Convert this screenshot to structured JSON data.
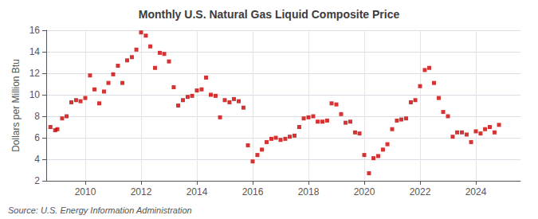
{
  "chart_data": {
    "type": "scatter",
    "title": "Monthly U.S. Natural Gas Liquid Composite Price",
    "ylabel": "Dollars per Million Btu",
    "annotations": [
      "Source: U.S. Energy Information Administration"
    ],
    "color": "#cc0000",
    "marker": "square",
    "grid": true,
    "xlim": [
      2008.6,
      2025.6
    ],
    "xticks": [
      2010,
      2012,
      2014,
      2016,
      2018,
      2020,
      2022,
      2024
    ],
    "ylim": [
      2,
      16
    ],
    "yticks": [
      2,
      4,
      6,
      8,
      10,
      12,
      14,
      16
    ],
    "x": [
      2008.75,
      2008.92,
      2009.0,
      2009.17,
      2009.33,
      2009.5,
      2009.67,
      2009.83,
      2010.0,
      2010.17,
      2010.33,
      2010.5,
      2010.67,
      2010.83,
      2011.0,
      2011.17,
      2011.33,
      2011.5,
      2011.67,
      2011.83,
      2012.0,
      2012.17,
      2012.33,
      2012.5,
      2012.67,
      2012.83,
      2013.0,
      2013.17,
      2013.33,
      2013.5,
      2013.67,
      2013.83,
      2014.0,
      2014.17,
      2014.33,
      2014.5,
      2014.67,
      2014.83,
      2015.0,
      2015.17,
      2015.33,
      2015.5,
      2015.67,
      2015.83,
      2016.0,
      2016.17,
      2016.33,
      2016.5,
      2016.67,
      2016.83,
      2017.0,
      2017.17,
      2017.33,
      2017.5,
      2017.67,
      2017.83,
      2018.0,
      2018.17,
      2018.33,
      2018.5,
      2018.67,
      2018.83,
      2019.0,
      2019.17,
      2019.33,
      2019.5,
      2019.67,
      2019.83,
      2020.0,
      2020.17,
      2020.33,
      2020.5,
      2020.67,
      2020.83,
      2021.0,
      2021.17,
      2021.33,
      2021.5,
      2021.67,
      2021.83,
      2022.0,
      2022.17,
      2022.33,
      2022.5,
      2022.67,
      2022.83,
      2023.0,
      2023.17,
      2023.33,
      2023.5,
      2023.67,
      2023.83,
      2024.0,
      2024.17,
      2024.33,
      2024.5,
      2024.67,
      2024.83
    ],
    "values": [
      7.0,
      6.7,
      6.8,
      7.8,
      8.0,
      9.3,
      9.5,
      9.4,
      9.7,
      11.8,
      10.5,
      9.2,
      10.3,
      11.1,
      11.9,
      12.7,
      11.1,
      13.2,
      13.5,
      14.2,
      15.8,
      15.5,
      14.5,
      12.5,
      13.9,
      13.8,
      13.1,
      10.7,
      9.0,
      9.5,
      9.8,
      9.9,
      10.4,
      10.5,
      11.6,
      10.0,
      9.9,
      7.9,
      9.5,
      9.3,
      9.6,
      9.4,
      8.8,
      5.3,
      3.8,
      4.4,
      4.9,
      5.6,
      5.9,
      6.0,
      5.8,
      5.9,
      6.1,
      6.2,
      7.0,
      7.8,
      7.9,
      8.0,
      7.5,
      7.5,
      7.6,
      9.2,
      9.1,
      8.2,
      7.4,
      7.5,
      6.5,
      6.4,
      4.4,
      2.7,
      4.1,
      4.3,
      4.9,
      5.4,
      6.8,
      7.6,
      7.7,
      7.8,
      9.3,
      9.5,
      10.8,
      12.3,
      12.5,
      11.1,
      9.7,
      8.4,
      8.0,
      6.1,
      6.5,
      6.5,
      6.3,
      5.6,
      6.6,
      6.4,
      6.8,
      7.0,
      6.5,
      7.2
    ]
  }
}
